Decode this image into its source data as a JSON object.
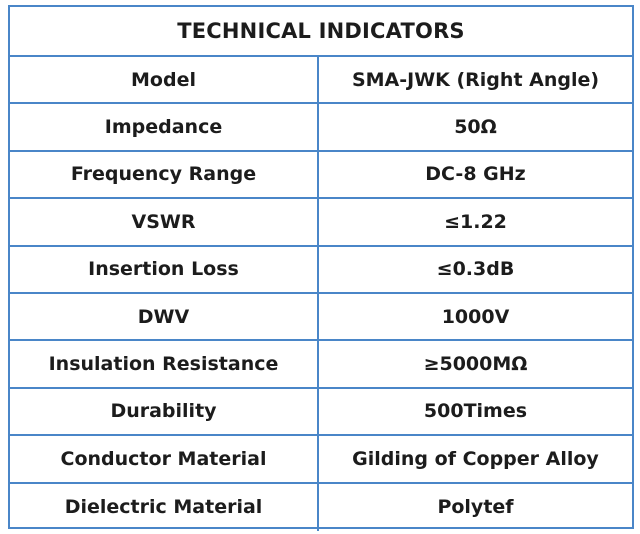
{
  "table": {
    "title": "TECHNICAL INDICATORS",
    "border_color": "#4a86c8",
    "rows": [
      {
        "label": "Model",
        "value": "SMA-JWK (Right Angle)"
      },
      {
        "label": "Impedance",
        "value": "50Ω"
      },
      {
        "label": "Frequency Range",
        "value": "DC-8 GHz"
      },
      {
        "label": "VSWR",
        "value": "≤1.22"
      },
      {
        "label": "Insertion Loss",
        "value": "≤0.3dB"
      },
      {
        "label": "DWV",
        "value": "1000V"
      },
      {
        "label": "Insulation Resistance",
        "value": "≥5000MΩ"
      },
      {
        "label": "Durability",
        "value": "500Times"
      },
      {
        "label": "Conductor Material",
        "value": "Gilding of Copper Alloy"
      },
      {
        "label": "Dielectric Material",
        "value": "Polytef"
      }
    ]
  }
}
